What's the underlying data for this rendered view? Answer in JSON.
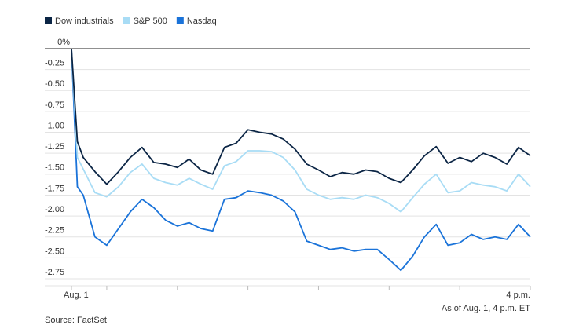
{
  "chart_data": {
    "type": "line",
    "x": [
      0,
      5,
      10,
      20,
      30,
      40,
      50,
      60,
      70,
      80,
      90,
      100,
      110,
      120,
      130,
      140,
      150,
      160,
      170,
      180,
      190,
      200,
      210,
      220,
      230,
      240,
      250,
      260,
      270,
      280,
      290,
      300,
      310,
      320,
      330,
      340,
      350,
      360,
      370,
      380,
      390
    ],
    "series": [
      {
        "name": "Dow industrials",
        "color": "#0b2545",
        "values": [
          0,
          -1.11,
          -1.3,
          -1.47,
          -1.62,
          -1.47,
          -1.3,
          -1.18,
          -1.36,
          -1.38,
          -1.42,
          -1.32,
          -1.45,
          -1.5,
          -1.18,
          -1.13,
          -0.97,
          -1.0,
          -1.02,
          -1.08,
          -1.2,
          -1.38,
          -1.45,
          -1.53,
          -1.48,
          -1.5,
          -1.45,
          -1.47,
          -1.55,
          -1.6,
          -1.45,
          -1.28,
          -1.17,
          -1.37,
          -1.3,
          -1.35,
          -1.25,
          -1.3,
          -1.38,
          -1.18,
          -1.28
        ]
      },
      {
        "name": "S&P 500",
        "color": "#a8dcf5",
        "values": [
          0,
          -1.3,
          -1.44,
          -1.72,
          -1.77,
          -1.65,
          -1.48,
          -1.38,
          -1.55,
          -1.6,
          -1.63,
          -1.55,
          -1.62,
          -1.68,
          -1.4,
          -1.35,
          -1.22,
          -1.22,
          -1.23,
          -1.3,
          -1.45,
          -1.68,
          -1.75,
          -1.8,
          -1.78,
          -1.8,
          -1.75,
          -1.78,
          -1.85,
          -1.95,
          -1.78,
          -1.62,
          -1.5,
          -1.72,
          -1.7,
          -1.6,
          -1.63,
          -1.65,
          -1.7,
          -1.5,
          -1.65
        ]
      },
      {
        "name": "Nasdaq",
        "color": "#1a73d9",
        "values": [
          0,
          -1.65,
          -1.75,
          -2.25,
          -2.35,
          -2.15,
          -1.95,
          -1.8,
          -1.9,
          -2.05,
          -2.12,
          -2.08,
          -2.15,
          -2.18,
          -1.8,
          -1.78,
          -1.7,
          -1.72,
          -1.75,
          -1.82,
          -1.95,
          -2.3,
          -2.35,
          -2.4,
          -2.38,
          -2.42,
          -2.4,
          -2.4,
          -2.52,
          -2.65,
          -2.48,
          -2.25,
          -2.1,
          -2.35,
          -2.32,
          -2.22,
          -2.28,
          -2.25,
          -2.28,
          -2.1,
          -2.25
        ]
      }
    ],
    "xlim": [
      0,
      390
    ],
    "xticks": [
      {
        "value": 0,
        "label": "Aug. 1"
      },
      {
        "value": 390,
        "label": "4 p.m."
      }
    ],
    "minor_xticks": [
      30,
      90,
      150,
      210,
      270,
      330
    ],
    "ylim": [
      -2.75,
      0
    ],
    "yticks": [
      {
        "value": 0,
        "label": "0%"
      },
      -0.25,
      {
        "value": -0.5,
        "label": "-0.50"
      },
      -0.75,
      {
        "value": -1,
        "label": "-1.00"
      },
      -1.25,
      {
        "value": -1.5,
        "label": "-1.50"
      },
      -1.75,
      {
        "value": -2,
        "label": "-2.00"
      },
      -2.25,
      {
        "value": -2.5,
        "label": "-2.50"
      },
      -2.75
    ],
    "grid": true,
    "note": "As of Aug. 1, 4 p.m. ET",
    "source": "Source: FactSet"
  }
}
